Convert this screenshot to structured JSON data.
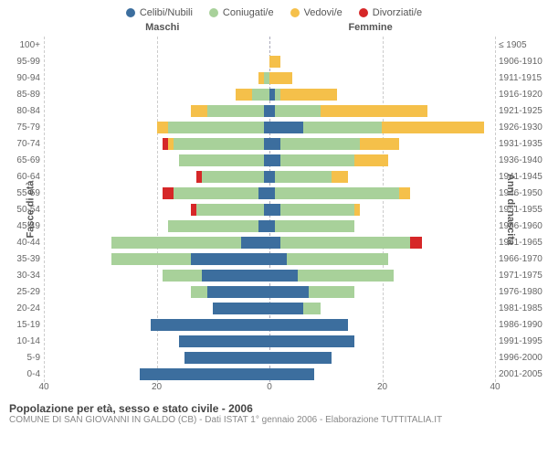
{
  "legend": [
    {
      "label": "Celibi/Nubili",
      "color": "#3c6e9e"
    },
    {
      "label": "Coniugati/e",
      "color": "#a8d19a"
    },
    {
      "label": "Vedovi/e",
      "color": "#f5c04a"
    },
    {
      "label": "Divorziati/e",
      "color": "#d62728"
    }
  ],
  "col_headers": {
    "left": "Maschi",
    "right": "Femmine"
  },
  "y_left_title": "Fasce di età",
  "y_right_title": "Anni di nascita",
  "x_axis": {
    "max": 40,
    "ticks": [
      40,
      20,
      0,
      20,
      40
    ]
  },
  "title": "Popolazione per età, sesso e stato civile - 2006",
  "subtitle": "COMUNE DI SAN GIOVANNI IN GALDO (CB) - Dati ISTAT 1° gennaio 2006 - Elaborazione TUTTITALIA.IT",
  "colors": {
    "celibi": "#3c6e9e",
    "coniugati": "#a8d19a",
    "vedovi": "#f5c04a",
    "divorziati": "#d62728",
    "grid": "#cccccc",
    "center": "#aab"
  },
  "rows": [
    {
      "age": "100+",
      "birth": "≤ 1905",
      "m": {
        "c": 0,
        "co": 0,
        "v": 0,
        "d": 0
      },
      "f": {
        "c": 0,
        "co": 0,
        "v": 0,
        "d": 0
      }
    },
    {
      "age": "95-99",
      "birth": "1906-1910",
      "m": {
        "c": 0,
        "co": 0,
        "v": 0,
        "d": 0
      },
      "f": {
        "c": 0,
        "co": 0,
        "v": 2,
        "d": 0
      }
    },
    {
      "age": "90-94",
      "birth": "1911-1915",
      "m": {
        "c": 0,
        "co": 1,
        "v": 1,
        "d": 0
      },
      "f": {
        "c": 0,
        "co": 0,
        "v": 4,
        "d": 0
      }
    },
    {
      "age": "85-89",
      "birth": "1916-1920",
      "m": {
        "c": 0,
        "co": 3,
        "v": 3,
        "d": 0
      },
      "f": {
        "c": 1,
        "co": 1,
        "v": 10,
        "d": 0
      }
    },
    {
      "age": "80-84",
      "birth": "1921-1925",
      "m": {
        "c": 1,
        "co": 10,
        "v": 3,
        "d": 0
      },
      "f": {
        "c": 1,
        "co": 8,
        "v": 19,
        "d": 0
      }
    },
    {
      "age": "75-79",
      "birth": "1926-1930",
      "m": {
        "c": 1,
        "co": 17,
        "v": 2,
        "d": 0
      },
      "f": {
        "c": 6,
        "co": 14,
        "v": 18,
        "d": 0
      }
    },
    {
      "age": "70-74",
      "birth": "1931-1935",
      "m": {
        "c": 1,
        "co": 16,
        "v": 1,
        "d": 1
      },
      "f": {
        "c": 2,
        "co": 14,
        "v": 7,
        "d": 0
      }
    },
    {
      "age": "65-69",
      "birth": "1936-1940",
      "m": {
        "c": 1,
        "co": 15,
        "v": 0,
        "d": 0
      },
      "f": {
        "c": 2,
        "co": 13,
        "v": 6,
        "d": 0
      }
    },
    {
      "age": "60-64",
      "birth": "1941-1945",
      "m": {
        "c": 1,
        "co": 11,
        "v": 0,
        "d": 1
      },
      "f": {
        "c": 1,
        "co": 10,
        "v": 3,
        "d": 0
      }
    },
    {
      "age": "55-59",
      "birth": "1946-1950",
      "m": {
        "c": 2,
        "co": 15,
        "v": 0,
        "d": 2
      },
      "f": {
        "c": 1,
        "co": 22,
        "v": 2,
        "d": 0
      }
    },
    {
      "age": "50-54",
      "birth": "1951-1955",
      "m": {
        "c": 1,
        "co": 12,
        "v": 0,
        "d": 1
      },
      "f": {
        "c": 2,
        "co": 13,
        "v": 1,
        "d": 0
      }
    },
    {
      "age": "45-49",
      "birth": "1956-1960",
      "m": {
        "c": 2,
        "co": 16,
        "v": 0,
        "d": 0
      },
      "f": {
        "c": 1,
        "co": 14,
        "v": 0,
        "d": 0
      }
    },
    {
      "age": "40-44",
      "birth": "1961-1965",
      "m": {
        "c": 5,
        "co": 23,
        "v": 0,
        "d": 0
      },
      "f": {
        "c": 2,
        "co": 23,
        "v": 0,
        "d": 2
      }
    },
    {
      "age": "35-39",
      "birth": "1966-1970",
      "m": {
        "c": 14,
        "co": 14,
        "v": 0,
        "d": 0
      },
      "f": {
        "c": 3,
        "co": 18,
        "v": 0,
        "d": 0
      }
    },
    {
      "age": "30-34",
      "birth": "1971-1975",
      "m": {
        "c": 12,
        "co": 7,
        "v": 0,
        "d": 0
      },
      "f": {
        "c": 5,
        "co": 17,
        "v": 0,
        "d": 0
      }
    },
    {
      "age": "25-29",
      "birth": "1976-1980",
      "m": {
        "c": 11,
        "co": 3,
        "v": 0,
        "d": 0
      },
      "f": {
        "c": 7,
        "co": 8,
        "v": 0,
        "d": 0
      }
    },
    {
      "age": "20-24",
      "birth": "1981-1985",
      "m": {
        "c": 10,
        "co": 0,
        "v": 0,
        "d": 0
      },
      "f": {
        "c": 6,
        "co": 3,
        "v": 0,
        "d": 0
      }
    },
    {
      "age": "15-19",
      "birth": "1986-1990",
      "m": {
        "c": 21,
        "co": 0,
        "v": 0,
        "d": 0
      },
      "f": {
        "c": 14,
        "co": 0,
        "v": 0,
        "d": 0
      }
    },
    {
      "age": "10-14",
      "birth": "1991-1995",
      "m": {
        "c": 16,
        "co": 0,
        "v": 0,
        "d": 0
      },
      "f": {
        "c": 15,
        "co": 0,
        "v": 0,
        "d": 0
      }
    },
    {
      "age": "5-9",
      "birth": "1996-2000",
      "m": {
        "c": 15,
        "co": 0,
        "v": 0,
        "d": 0
      },
      "f": {
        "c": 11,
        "co": 0,
        "v": 0,
        "d": 0
      }
    },
    {
      "age": "0-4",
      "birth": "2001-2005",
      "m": {
        "c": 23,
        "co": 0,
        "v": 0,
        "d": 0
      },
      "f": {
        "c": 8,
        "co": 0,
        "v": 0,
        "d": 0
      }
    }
  ]
}
